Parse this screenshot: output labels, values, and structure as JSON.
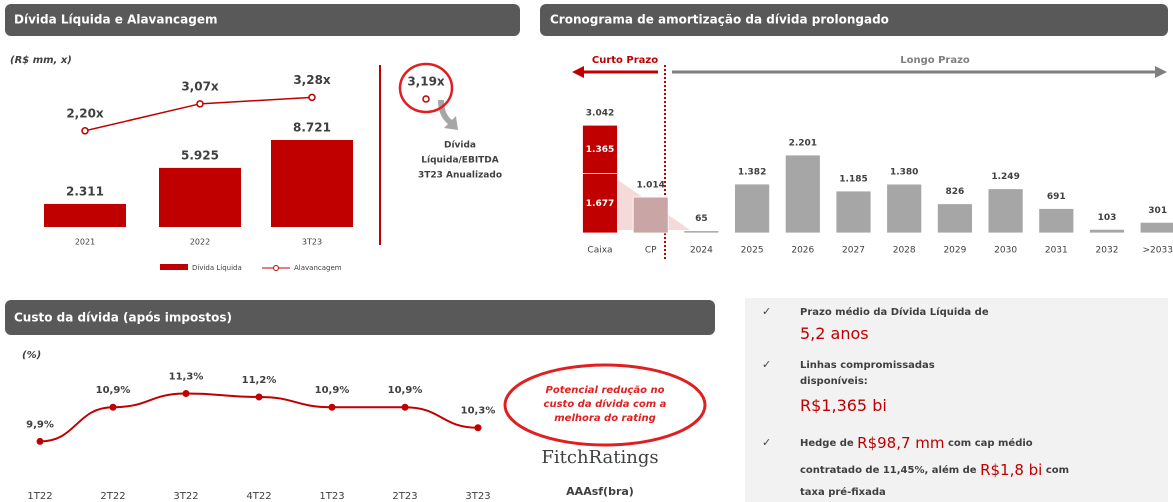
{
  "chart_data": [
    {
      "type": "combo",
      "title": "Dívida Líquida e Alavancagem",
      "subtitle": "(R$ mm, x)",
      "categories": [
        "2021",
        "2022",
        "3T23"
      ],
      "series": [
        {
          "name": "Dívida Líquida",
          "type": "bar",
          "color": "#c00000",
          "values": [
            2311,
            5925,
            8721
          ],
          "value_labels": [
            "2.311",
            "5.925",
            "8.721"
          ]
        },
        {
          "name": "Alavancagem",
          "type": "line",
          "axis": "y2",
          "color": "#c00000",
          "values": [
            2.2,
            3.07,
            3.28
          ],
          "value_labels": [
            "2,20x",
            "3,07x",
            "3,28x"
          ]
        }
      ],
      "legend": "bottom",
      "annotation": {
        "value": 3.19,
        "label": "3,19x",
        "text": [
          "Dívida",
          "Líquida/EBITDA",
          "3T23 Anualizado"
        ]
      }
    },
    {
      "type": "stacked_bar",
      "title": "Cronograma de amortização da dívida prolongado",
      "short_term_label": "Curto Prazo",
      "long_term_label": "Longo Prazo",
      "categories": [
        "Caixa",
        "CP",
        "2024",
        "2025",
        "2026",
        "2027",
        "2028",
        "2029",
        "2030",
        "2031",
        "2032",
        ">2033"
      ],
      "series": [
        {
          "colors": [
            "#c00000",
            "#c9a5a5",
            "#a6a6a6",
            "#a6a6a6",
            "#a6a6a6",
            "#a6a6a6",
            "#a6a6a6",
            "#a6a6a6",
            "#a6a6a6",
            "#a6a6a6",
            "#a6a6a6",
            "#a6a6a6"
          ],
          "values": [
            1677,
            1014,
            65,
            1382,
            2201,
            1185,
            1380,
            826,
            1249,
            691,
            103,
            301
          ],
          "value_labels": [
            "1.677",
            "1.014",
            "65",
            "1.382",
            "2.201",
            "1.185",
            "1.380",
            "826",
            "1.249",
            "691",
            "103",
            "301"
          ]
        },
        {
          "color": "#c00000",
          "values": [
            1365,
            null,
            null,
            null,
            null,
            null,
            null,
            null,
            null,
            null,
            null,
            null
          ],
          "value_labels": [
            "1.365",
            null,
            null,
            null,
            null,
            null,
            null,
            null,
            null,
            null,
            null,
            null
          ]
        }
      ],
      "total": {
        "value": 3042,
        "label": "3.042"
      }
    },
    {
      "type": "line",
      "title": "Custo da dívida (após impostos)",
      "ylabel": "(%)",
      "color": "#c00000",
      "categories": [
        "1T22",
        "2T22",
        "3T22",
        "4T22",
        "1T23",
        "2T23",
        "3T23"
      ],
      "values": [
        9.9,
        10.9,
        11.3,
        11.2,
        10.9,
        10.9,
        10.3
      ],
      "value_labels": [
        "9,9%",
        "10,9%",
        "11,3%",
        "11,2%",
        "10,9%",
        "10,9%",
        "10,3%"
      ],
      "annotation": [
        "Potencial redução no",
        "custo da dívida com a",
        "melhora do rating"
      ],
      "rating_agency": "FitchRatings",
      "rating": "AAAsf(bra)"
    }
  ],
  "bullets": [
    {
      "lines": [
        [
          {
            "text": "Prazo médio da Dívida Líquida de"
          }
        ],
        [
          {
            "text": "5,2 anos",
            "highlight": true
          }
        ]
      ]
    },
    {
      "lines": [
        [
          {
            "text": "Linhas compromissadas"
          }
        ],
        [
          {
            "text": "disponíveis:"
          }
        ],
        [
          {
            "text": "R$1,365 bi",
            "highlight": true
          }
        ]
      ]
    },
    {
      "lines": [
        [
          {
            "text": "Hedge de "
          },
          {
            "text": "R$98,7 mm",
            "highlight": true
          },
          {
            "text": " com cap médio"
          }
        ],
        [
          {
            "text": "contratado de 11,45%, além de "
          },
          {
            "text": "R$1,8 bi",
            "highlight": true
          },
          {
            "text": " com"
          }
        ],
        [
          {
            "text": "taxa pré-fixada"
          }
        ]
      ]
    }
  ]
}
